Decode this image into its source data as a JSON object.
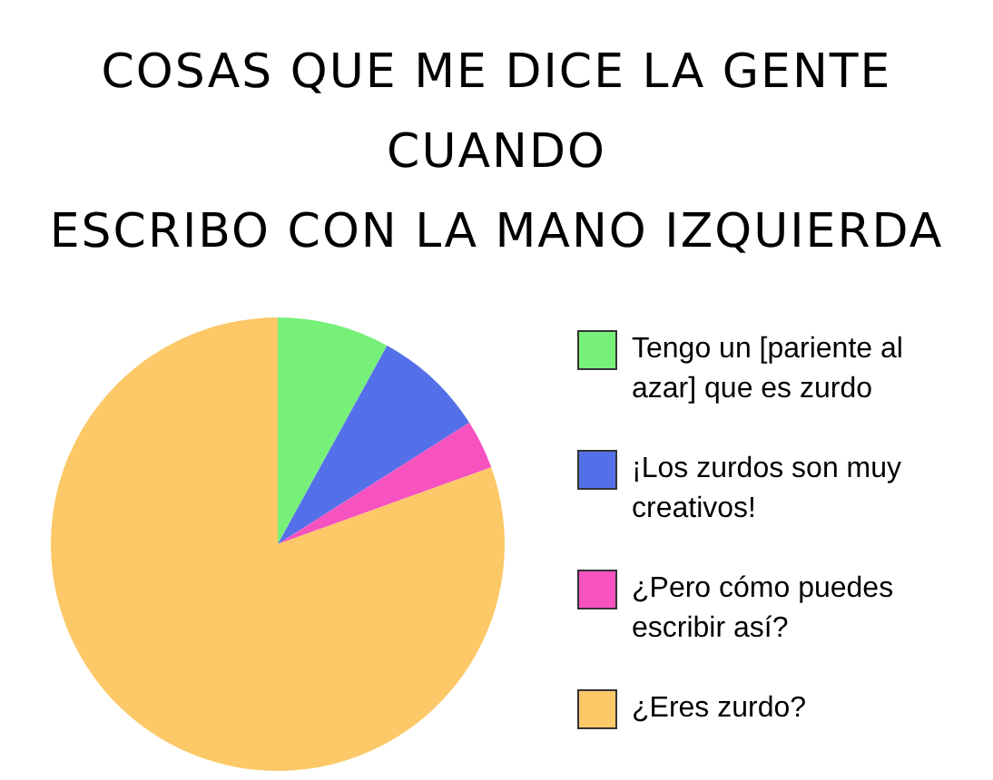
{
  "chart_data": {
    "type": "pie",
    "title": "COSAS QUE ME DICE LA GENTE CUANDO\nESCRIBO CON LA MANO IZQUIERDA",
    "categories": [
      "Tengo un [pariente al azar] que es zurdo",
      "¡Los zurdos son muy creativos!",
      "¿Pero cómo puedes escribir así?",
      "¿Eres zurdo?"
    ],
    "values": [
      8,
      8,
      3.5,
      80.5
    ],
    "colors": [
      "#77f07a",
      "#5470e8",
      "#f652c0",
      "#fcc868"
    ],
    "legend": "right"
  }
}
